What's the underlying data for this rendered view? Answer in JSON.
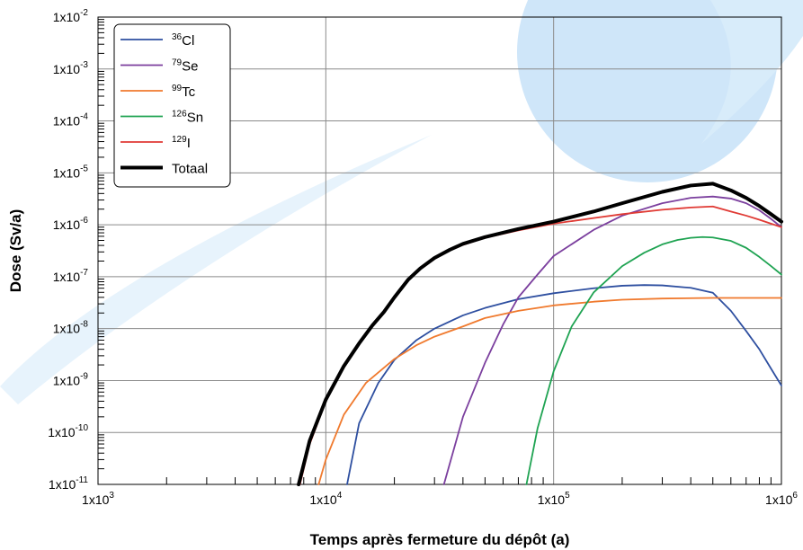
{
  "chart_data": {
    "type": "line",
    "title": "",
    "xlabel": "Temps après fermeture du dépôt (a)",
    "ylabel": "Dose (Sv/a)",
    "xscale": "log",
    "yscale": "log",
    "xlim": [
      1000,
      1000000
    ],
    "ylim": [
      1e-11,
      0.01
    ],
    "grid": true,
    "legend_position": "top-left",
    "x_ticks": [
      {
        "value": 1000,
        "base": "1x10",
        "exp": "3"
      },
      {
        "value": 10000,
        "base": "1x10",
        "exp": "4"
      },
      {
        "value": 100000,
        "base": "1x10",
        "exp": "5"
      },
      {
        "value": 1000000,
        "base": "1x10",
        "exp": "6"
      }
    ],
    "y_ticks": [
      {
        "value": 0.01,
        "base": "1x10",
        "exp": "-2"
      },
      {
        "value": 0.001,
        "base": "1x10",
        "exp": "-3"
      },
      {
        "value": 0.0001,
        "base": "1x10",
        "exp": "-4"
      },
      {
        "value": 1e-05,
        "base": "1x10",
        "exp": "-5"
      },
      {
        "value": 1e-06,
        "base": "1x10",
        "exp": "-6"
      },
      {
        "value": 1e-07,
        "base": "1x10",
        "exp": "-7"
      },
      {
        "value": 1e-08,
        "base": "1x10",
        "exp": "-8"
      },
      {
        "value": 1e-09,
        "base": "1x10",
        "exp": "-9"
      },
      {
        "value": 1e-10,
        "base": "1x10",
        "exp": "-10"
      },
      {
        "value": 1e-11,
        "base": "1x10",
        "exp": "-11"
      }
    ],
    "series": [
      {
        "name": "36Cl",
        "sup": "36",
        "label": "Cl",
        "color": "#2e4fa0",
        "bold": false,
        "points": [
          [
            12400,
            1e-11
          ],
          [
            14000,
            1.5e-10
          ],
          [
            17000,
            9e-10
          ],
          [
            20000,
            2.5e-09
          ],
          [
            25000,
            6e-09
          ],
          [
            30000,
            1e-08
          ],
          [
            40000,
            1.8e-08
          ],
          [
            50000,
            2.5e-08
          ],
          [
            70000,
            3.7e-08
          ],
          [
            100000,
            4.8e-08
          ],
          [
            150000,
            6e-08
          ],
          [
            200000,
            6.7e-08
          ],
          [
            250000,
            6.9e-08
          ],
          [
            300000,
            6.8e-08
          ],
          [
            400000,
            6.1e-08
          ],
          [
            500000,
            4.9e-08
          ],
          [
            600000,
            2.2e-08
          ],
          [
            700000,
            9e-09
          ],
          [
            800000,
            4e-09
          ],
          [
            900000,
            1.7e-09
          ],
          [
            1000000,
            8e-10
          ]
        ]
      },
      {
        "name": "79Se",
        "sup": "79",
        "label": "Se",
        "color": "#7b3f9e",
        "bold": false,
        "points": [
          [
            33000,
            1e-11
          ],
          [
            40000,
            2e-10
          ],
          [
            50000,
            2.2e-09
          ],
          [
            60000,
            1.2e-08
          ],
          [
            70000,
            4e-08
          ],
          [
            85000,
            1.1e-07
          ],
          [
            100000,
            2.5e-07
          ],
          [
            150000,
            8e-07
          ],
          [
            200000,
            1.5e-06
          ],
          [
            300000,
            2.6e-06
          ],
          [
            400000,
            3.3e-06
          ],
          [
            500000,
            3.5e-06
          ],
          [
            600000,
            3.2e-06
          ],
          [
            700000,
            2.6e-06
          ],
          [
            800000,
            1.9e-06
          ],
          [
            900000,
            1.3e-06
          ],
          [
            1000000,
            9e-07
          ]
        ]
      },
      {
        "name": "99Tc",
        "sup": "99",
        "label": "Tc",
        "color": "#f07a2e",
        "bold": false,
        "points": [
          [
            9300,
            1e-11
          ],
          [
            10000,
            3e-11
          ],
          [
            12000,
            2.2e-10
          ],
          [
            15000,
            9e-10
          ],
          [
            20000,
            2.6e-09
          ],
          [
            25000,
            4.8e-09
          ],
          [
            30000,
            7e-09
          ],
          [
            40000,
            1.1e-08
          ],
          [
            50000,
            1.6e-08
          ],
          [
            70000,
            2.2e-08
          ],
          [
            100000,
            2.8e-08
          ],
          [
            150000,
            3.3e-08
          ],
          [
            200000,
            3.6e-08
          ],
          [
            300000,
            3.8e-08
          ],
          [
            500000,
            3.9e-08
          ],
          [
            1000000,
            3.9e-08
          ]
        ]
      },
      {
        "name": "126Sn",
        "sup": "126",
        "label": "Sn",
        "color": "#1fa352",
        "bold": false,
        "points": [
          [
            76000,
            1e-11
          ],
          [
            85000,
            1.2e-10
          ],
          [
            100000,
            1.5e-09
          ],
          [
            120000,
            1.1e-08
          ],
          [
            150000,
            5e-08
          ],
          [
            200000,
            1.6e-07
          ],
          [
            250000,
            2.9e-07
          ],
          [
            300000,
            4.2e-07
          ],
          [
            350000,
            5.1e-07
          ],
          [
            400000,
            5.6e-07
          ],
          [
            450000,
            5.8e-07
          ],
          [
            500000,
            5.7e-07
          ],
          [
            600000,
            4.9e-07
          ],
          [
            700000,
            3.6e-07
          ],
          [
            800000,
            2.4e-07
          ],
          [
            900000,
            1.6e-07
          ],
          [
            1000000,
            1.1e-07
          ]
        ]
      },
      {
        "name": "129I",
        "sup": "129",
        "label": "I",
        "color": "#e03a34",
        "bold": false,
        "points": [
          [
            7700,
            1e-11
          ],
          [
            8500,
            6e-11
          ],
          [
            10000,
            4e-10
          ],
          [
            12000,
            1.8e-09
          ],
          [
            14000,
            5e-09
          ],
          [
            16000,
            1.1e-08
          ],
          [
            18000,
            2e-08
          ],
          [
            20000,
            3.8e-08
          ],
          [
            23000,
            8.5e-08
          ],
          [
            26000,
            1.4e-07
          ],
          [
            30000,
            2.2e-07
          ],
          [
            35000,
            3.2e-07
          ],
          [
            40000,
            4.1e-07
          ],
          [
            50000,
            5.6e-07
          ],
          [
            70000,
            7.8e-07
          ],
          [
            100000,
            1.05e-06
          ],
          [
            150000,
            1.35e-06
          ],
          [
            200000,
            1.6e-06
          ],
          [
            300000,
            1.95e-06
          ],
          [
            400000,
            2.15e-06
          ],
          [
            500000,
            2.25e-06
          ],
          [
            600000,
            1.8e-06
          ],
          [
            700000,
            1.5e-06
          ],
          [
            800000,
            1.25e-06
          ],
          [
            900000,
            1.05e-06
          ],
          [
            1000000,
            9e-07
          ]
        ]
      },
      {
        "name": "Totaal",
        "sup": "",
        "label": "Totaal",
        "color": "#000000",
        "bold": true,
        "points": [
          [
            7600,
            1e-11
          ],
          [
            8500,
            7e-11
          ],
          [
            10000,
            4.3e-10
          ],
          [
            12000,
            1.9e-09
          ],
          [
            14000,
            5.2e-09
          ],
          [
            16000,
            1.15e-08
          ],
          [
            18000,
            2.1e-08
          ],
          [
            20000,
            4e-08
          ],
          [
            23000,
            8.8e-08
          ],
          [
            26000,
            1.45e-07
          ],
          [
            30000,
            2.3e-07
          ],
          [
            35000,
            3.3e-07
          ],
          [
            40000,
            4.3e-07
          ],
          [
            50000,
            5.8e-07
          ],
          [
            70000,
            8.3e-07
          ],
          [
            100000,
            1.15e-06
          ],
          [
            150000,
            1.8e-06
          ],
          [
            200000,
            2.6e-06
          ],
          [
            300000,
            4.3e-06
          ],
          [
            400000,
            5.7e-06
          ],
          [
            500000,
            6.2e-06
          ],
          [
            600000,
            4.6e-06
          ],
          [
            700000,
            3.3e-06
          ],
          [
            800000,
            2.3e-06
          ],
          [
            900000,
            1.6e-06
          ],
          [
            1000000,
            1.15e-06
          ]
        ]
      }
    ]
  }
}
